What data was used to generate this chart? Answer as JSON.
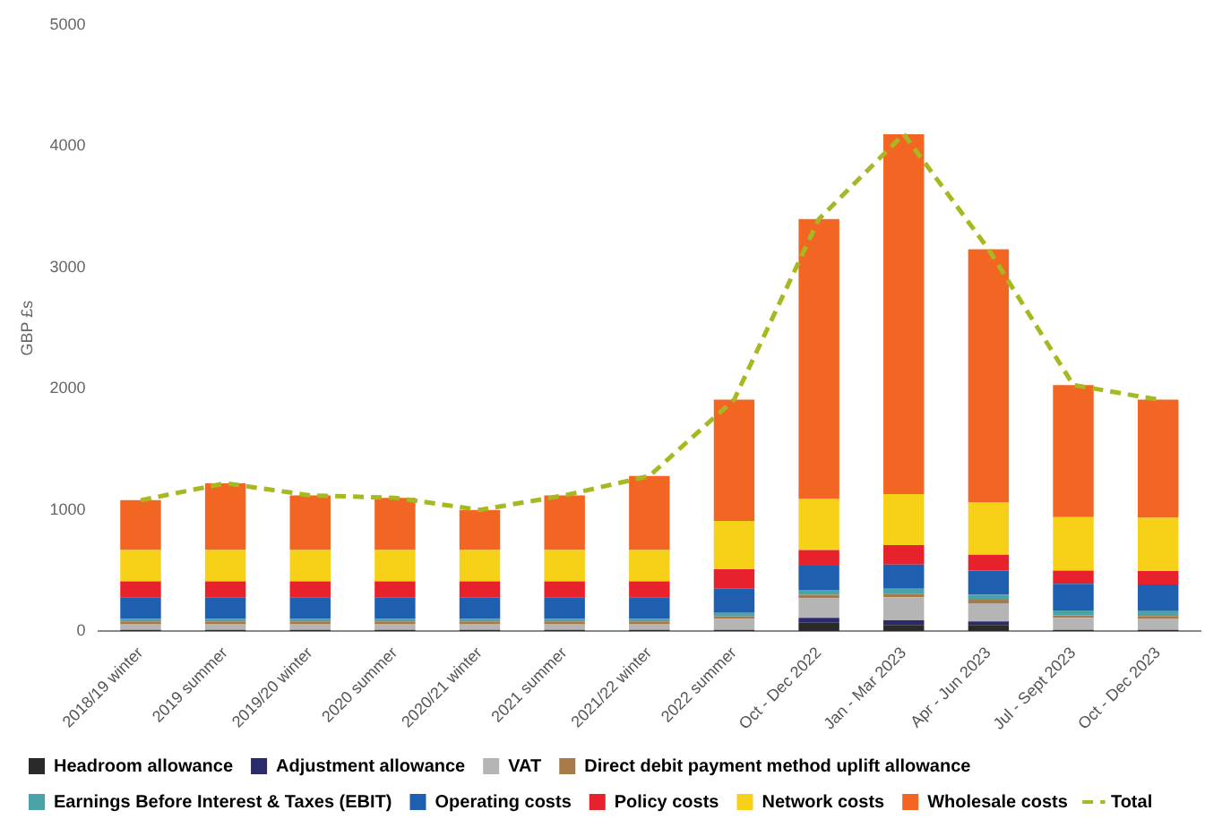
{
  "chart_data": {
    "type": "bar",
    "stacked": true,
    "ylabel": "GBP £s",
    "categories": [
      "2018/19 winter",
      "2019 summer",
      "2019/20 winter",
      "2020 summer",
      "2020/21 winter",
      "2021 summer",
      "2021/22 winter",
      "2022 summer",
      "Oct - Dec 2022",
      "Jan - Mar 2023",
      "Apr - Jun 2023",
      "Jul - Sept 2023",
      "Oct - Dec 2023"
    ],
    "series": [
      {
        "name": "Headroom allowance",
        "color": "#2a2a2a",
        "values": [
          10,
          10,
          10,
          10,
          10,
          10,
          10,
          10,
          70,
          50,
          50,
          10,
          10
        ]
      },
      {
        "name": "Adjustment allowance",
        "color": "#2b2a6b",
        "values": [
          null,
          null,
          null,
          null,
          null,
          null,
          null,
          null,
          40,
          40,
          30,
          null,
          null
        ]
      },
      {
        "name": "VAT",
        "color": "#b5b5b5",
        "values": [
          50,
          50,
          50,
          50,
          50,
          50,
          50,
          90,
          160,
          190,
          150,
          100,
          95
        ]
      },
      {
        "name": "Direct debit payment method uplift allowance",
        "color": "#a87a4a",
        "values": [
          20,
          20,
          20,
          20,
          20,
          20,
          20,
          20,
          30,
          30,
          30,
          20,
          20
        ]
      },
      {
        "name": "Earnings Before Interest & Taxes (EBIT)",
        "color": "#4aa3a8",
        "values": [
          20,
          20,
          20,
          20,
          20,
          20,
          20,
          30,
          40,
          40,
          40,
          40,
          40
        ]
      },
      {
        "name": "Operating costs",
        "color": "#1f5fb0",
        "values": [
          180,
          180,
          180,
          180,
          180,
          180,
          180,
          200,
          200,
          200,
          200,
          220,
          220
        ]
      },
      {
        "name": "Policy costs",
        "color": "#e8222d",
        "values": [
          130,
          130,
          130,
          130,
          130,
          130,
          130,
          160,
          130,
          160,
          130,
          110,
          110
        ]
      },
      {
        "name": "Network costs",
        "color": "#f7d117",
        "values": [
          260,
          260,
          260,
          260,
          260,
          260,
          260,
          400,
          420,
          420,
          430,
          440,
          440
        ]
      },
      {
        "name": "Wholesale costs",
        "color": "#f26522",
        "values": [
          410,
          550,
          450,
          430,
          330,
          450,
          610,
          1000,
          2310,
          2970,
          2090,
          1090,
          975
        ]
      },
      {
        "name": "Total",
        "type": "line",
        "color": "#a8b820",
        "line_style": "dashed",
        "marker": "none",
        "values": [
          1080,
          1220,
          1120,
          1100,
          1000,
          1120,
          1280,
          1910,
          3400,
          4100,
          3150,
          2030,
          1910
        ]
      }
    ],
    "ylim": [
      0,
      5000
    ],
    "yticks": [
      0,
      1000,
      2000,
      3000,
      4000,
      5000
    ],
    "grid": false,
    "legend": "bottom"
  }
}
